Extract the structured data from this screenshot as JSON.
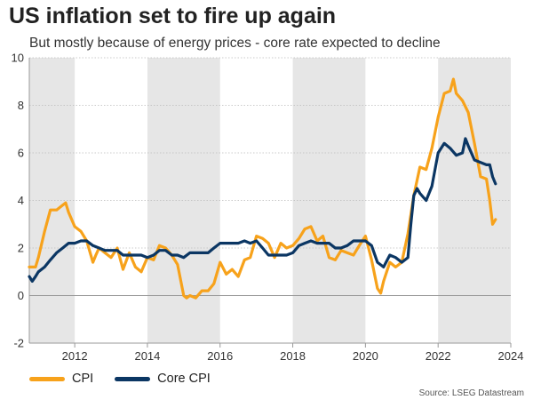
{
  "title": "US inflation set to fire up again",
  "subtitle": "But mostly because of energy prices - core rate expected to decline",
  "source": "Source: LSEG Datastream",
  "colors": {
    "cpi": "#F7A21B",
    "core": "#0B3663",
    "shade": "#E6E6E6",
    "zero_line": "#999999",
    "grid": "#BBBBBB"
  },
  "chart_data": {
    "type": "line",
    "xlim": [
      2010.75,
      2024.0
    ],
    "ylim": [
      -2,
      10
    ],
    "yticks": [
      -2,
      0,
      2,
      4,
      6,
      8,
      10
    ],
    "xticks": [
      2012,
      2014,
      2016,
      2018,
      2020,
      2022,
      2024
    ],
    "shaded_years": [
      [
        2010.75,
        2012
      ],
      [
        2014,
        2016
      ],
      [
        2018,
        2020
      ],
      [
        2022,
        2024
      ]
    ],
    "gridlines": "dashed horizontal",
    "legend_position": "bottom-left",
    "series": [
      {
        "name": "CPI",
        "color": "#F7A21B",
        "x": [
          2010.75,
          2010.92,
          2011.0,
          2011.17,
          2011.33,
          2011.5,
          2011.67,
          2011.75,
          2011.83,
          2012.0,
          2012.17,
          2012.33,
          2012.5,
          2012.58,
          2012.67,
          2012.83,
          2013.0,
          2013.17,
          2013.33,
          2013.5,
          2013.67,
          2013.83,
          2014.0,
          2014.17,
          2014.33,
          2014.5,
          2014.67,
          2014.83,
          2015.0,
          2015.08,
          2015.17,
          2015.33,
          2015.5,
          2015.67,
          2015.83,
          2016.0,
          2016.17,
          2016.33,
          2016.5,
          2016.67,
          2016.83,
          2017.0,
          2017.17,
          2017.33,
          2017.5,
          2017.67,
          2017.83,
          2018.0,
          2018.17,
          2018.33,
          2018.5,
          2018.67,
          2018.83,
          2019.0,
          2019.17,
          2019.33,
          2019.5,
          2019.67,
          2019.83,
          2020.0,
          2020.17,
          2020.33,
          2020.42,
          2020.5,
          2020.67,
          2020.83,
          2021.0,
          2021.17,
          2021.33,
          2021.5,
          2021.67,
          2021.83,
          2022.0,
          2022.17,
          2022.33,
          2022.42,
          2022.5,
          2022.67,
          2022.83,
          2023.0,
          2023.17,
          2023.33,
          2023.42,
          2023.5,
          2023.58
        ],
        "values": [
          1.2,
          1.2,
          1.6,
          2.7,
          3.6,
          3.6,
          3.8,
          3.9,
          3.5,
          2.9,
          2.7,
          2.3,
          1.4,
          1.7,
          2.0,
          1.8,
          1.6,
          2.0,
          1.1,
          1.8,
          1.2,
          1.0,
          1.6,
          1.5,
          2.1,
          2.0,
          1.7,
          1.3,
          0.0,
          -0.1,
          0.0,
          -0.1,
          0.2,
          0.2,
          0.5,
          1.4,
          0.9,
          1.1,
          0.8,
          1.5,
          1.6,
          2.5,
          2.4,
          2.2,
          1.6,
          2.2,
          2.0,
          2.1,
          2.4,
          2.8,
          2.9,
          2.3,
          2.5,
          1.6,
          1.5,
          1.9,
          1.8,
          1.7,
          2.1,
          2.5,
          1.5,
          0.3,
          0.1,
          0.6,
          1.4,
          1.2,
          1.4,
          2.6,
          4.2,
          5.4,
          5.3,
          6.2,
          7.5,
          8.5,
          8.6,
          9.1,
          8.5,
          8.2,
          7.7,
          6.4,
          5.0,
          4.9,
          4.0,
          3.0,
          3.2
        ]
      },
      {
        "name": "Core CPI",
        "color": "#0B3663",
        "x": [
          2010.75,
          2010.83,
          2010.92,
          2011.0,
          2011.17,
          2011.33,
          2011.5,
          2011.67,
          2011.83,
          2012.0,
          2012.17,
          2012.33,
          2012.5,
          2012.67,
          2012.83,
          2013.0,
          2013.17,
          2013.33,
          2013.5,
          2013.67,
          2013.83,
          2014.0,
          2014.17,
          2014.33,
          2014.5,
          2014.67,
          2014.83,
          2015.0,
          2015.17,
          2015.33,
          2015.5,
          2015.67,
          2015.83,
          2016.0,
          2016.17,
          2016.33,
          2016.5,
          2016.67,
          2016.83,
          2017.0,
          2017.17,
          2017.33,
          2017.5,
          2017.67,
          2017.83,
          2018.0,
          2018.17,
          2018.33,
          2018.5,
          2018.67,
          2018.83,
          2019.0,
          2019.17,
          2019.33,
          2019.5,
          2019.67,
          2019.83,
          2020.0,
          2020.17,
          2020.33,
          2020.5,
          2020.67,
          2020.83,
          2021.0,
          2021.17,
          2021.25,
          2021.33,
          2021.42,
          2021.5,
          2021.67,
          2021.83,
          2022.0,
          2022.17,
          2022.33,
          2022.5,
          2022.67,
          2022.75,
          2022.83,
          2023.0,
          2023.17,
          2023.33,
          2023.42,
          2023.5,
          2023.58
        ],
        "values": [
          0.8,
          0.6,
          0.8,
          1.0,
          1.2,
          1.5,
          1.8,
          2.0,
          2.2,
          2.2,
          2.3,
          2.3,
          2.1,
          2.0,
          1.9,
          1.9,
          1.9,
          1.7,
          1.7,
          1.7,
          1.7,
          1.6,
          1.7,
          1.9,
          1.9,
          1.7,
          1.7,
          1.6,
          1.8,
          1.8,
          1.8,
          1.8,
          2.0,
          2.2,
          2.2,
          2.2,
          2.2,
          2.3,
          2.2,
          2.3,
          2.0,
          1.7,
          1.7,
          1.7,
          1.7,
          1.8,
          2.1,
          2.2,
          2.3,
          2.2,
          2.2,
          2.2,
          2.0,
          2.0,
          2.1,
          2.3,
          2.3,
          2.3,
          2.1,
          1.4,
          1.2,
          1.7,
          1.6,
          1.4,
          1.6,
          3.0,
          4.2,
          4.5,
          4.3,
          4.0,
          4.6,
          6.0,
          6.4,
          6.2,
          5.9,
          6.0,
          6.6,
          6.3,
          5.7,
          5.6,
          5.5,
          5.5,
          5.0,
          4.7
        ]
      }
    ]
  }
}
